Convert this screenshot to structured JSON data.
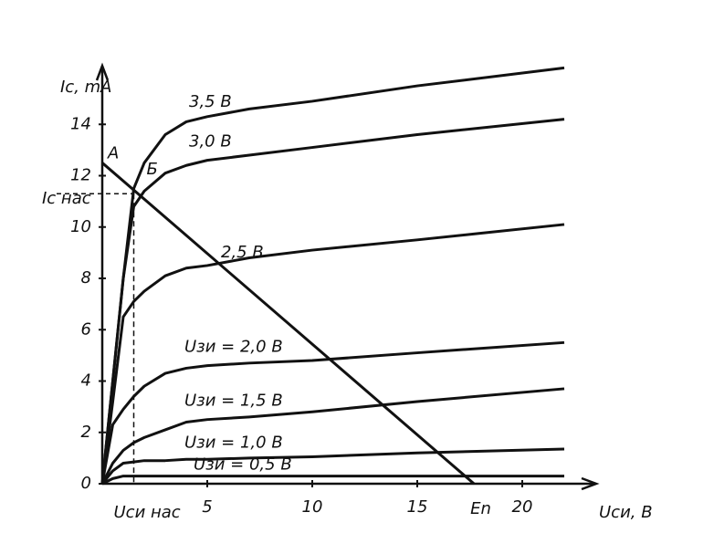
{
  "chart_data": {
    "type": "line",
    "y_label": "Ic, mA",
    "x_label": "Uси, В",
    "xlim": [
      0,
      23
    ],
    "ylim": [
      0,
      16
    ],
    "xticks": [
      5,
      10,
      15,
      20
    ],
    "yticks": [
      0,
      2,
      4,
      6,
      8,
      10,
      12,
      14
    ],
    "x": [
      0,
      0.5,
      1,
      1.5,
      2,
      3,
      4,
      5,
      7,
      10,
      15,
      22
    ],
    "color": "#111111",
    "series": [
      {
        "name": "3,5 В",
        "values": [
          0,
          4,
          8,
          11.5,
          12.5,
          13.6,
          14.1,
          14.3,
          14.6,
          14.9,
          15.5,
          16.2
        ]
      },
      {
        "name": "3,0 В",
        "values": [
          0,
          4,
          8,
          10.8,
          11.4,
          12.1,
          12.4,
          12.6,
          12.8,
          13.1,
          13.6,
          14.2
        ]
      },
      {
        "name": "2,5 В",
        "values": [
          0,
          3.2,
          6.5,
          7.1,
          7.5,
          8.1,
          8.4,
          8.5,
          8.8,
          9.1,
          9.5,
          10.1
        ]
      },
      {
        "name": "Uзи = 2,0 В",
        "values": [
          0,
          2.3,
          2.9,
          3.4,
          3.8,
          4.3,
          4.5,
          4.6,
          4.7,
          4.8,
          5.1,
          5.5
        ]
      },
      {
        "name": "Uзи = 1,5 В",
        "values": [
          0,
          0.8,
          1.3,
          1.6,
          1.8,
          2.1,
          2.4,
          2.5,
          2.6,
          2.8,
          3.2,
          3.7
        ]
      },
      {
        "name": "Uзи = 1,0 В",
        "values": [
          0,
          0.5,
          0.8,
          0.85,
          0.9,
          0.9,
          0.95,
          0.95,
          1.0,
          1.05,
          1.2,
          1.35
        ]
      },
      {
        "name": "Uзи = 0,5 В",
        "values": [
          0,
          0.2,
          0.3,
          0.3,
          0.3,
          0.3,
          0.3,
          0.3,
          0.3,
          0.3,
          0.3,
          0.3
        ]
      }
    ],
    "load_line": {
      "x": [
        0,
        17.7
      ],
      "y": [
        12.5,
        0
      ],
      "start_label": "A",
      "end_label": "En"
    },
    "saturation": {
      "x": 1.5,
      "y": 11.3,
      "x_label": "Uси нас",
      "y_label": "Iс нас",
      "point_label": "Б"
    }
  }
}
